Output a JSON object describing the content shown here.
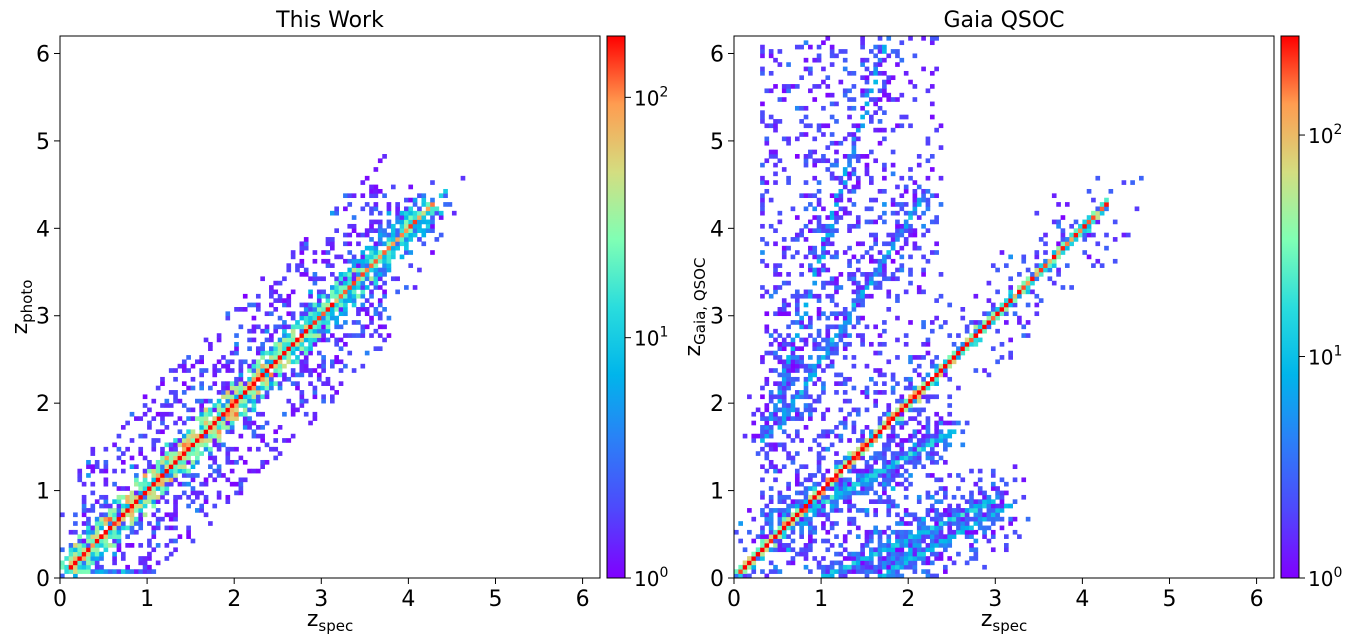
{
  "chart_data": [
    {
      "type": "heatmap",
      "title": "This Work",
      "xlabel": "z",
      "xlabel_sub": "spec",
      "ylabel": "z",
      "ylabel_sub": "photo",
      "xlim": [
        0,
        6.2
      ],
      "ylim": [
        0,
        6.2
      ],
      "xticks": [
        "0",
        "1",
        "2",
        "3",
        "4",
        "5",
        "6"
      ],
      "yticks": [
        "0",
        "1",
        "2",
        "3",
        "4",
        "5",
        "6"
      ],
      "colorbar": {
        "scale": "log",
        "range": [
          1,
          180
        ],
        "colormap": "rainbow",
        "ticks": [
          {
            "base": "10",
            "exp": "0",
            "value": 1
          },
          {
            "base": "10",
            "exp": "1",
            "value": 10
          },
          {
            "base": "10",
            "exp": "2",
            "value": 100
          }
        ]
      },
      "structures": [
        {
          "kind": "main-ridge",
          "z_spec_range": [
            0.1,
            4.3
          ],
          "slope": 1.0,
          "intercept": 0.0,
          "peak_counts": 180,
          "spread": 0.07
        },
        {
          "kind": "low-z-clump",
          "center": [
            0.2,
            0.2
          ],
          "peak_counts": 20
        }
      ]
    },
    {
      "type": "heatmap",
      "title": "Gaia QSOC",
      "xlabel": "z",
      "xlabel_sub": "spec",
      "ylabel": "z",
      "ylabel_sub": "Gaia, QSOC",
      "xlim": [
        0,
        6.2
      ],
      "ylim": [
        0,
        6.2
      ],
      "xticks": [
        "0",
        "1",
        "2",
        "3",
        "4",
        "5",
        "6"
      ],
      "yticks": [
        "0",
        "1",
        "2",
        "3",
        "4",
        "5",
        "6"
      ],
      "colorbar": {
        "scale": "log",
        "range": [
          1,
          280
        ],
        "colormap": "rainbow",
        "ticks": [
          {
            "base": "10",
            "exp": "0",
            "value": 1
          },
          {
            "base": "10",
            "exp": "1",
            "value": 10
          },
          {
            "base": "10",
            "exp": "2",
            "value": 100
          }
        ]
      },
      "structures": [
        {
          "kind": "main-ridge",
          "z_spec_range": [
            0.05,
            4.3
          ],
          "slope": 1.0,
          "intercept": 0.0,
          "peak_counts": 280,
          "spread": 0.02
        },
        {
          "kind": "alias-line",
          "z_spec_range": [
            0.35,
            2.1
          ],
          "slope": 3.3,
          "intercept": 0.4,
          "peak_counts": 8
        },
        {
          "kind": "alias-line",
          "z_spec_range": [
            0.5,
            2.2
          ],
          "slope": 1.6,
          "intercept": 0.9,
          "peak_counts": 6
        },
        {
          "kind": "alias-line",
          "z_spec_range": [
            0.5,
            2.5
          ],
          "slope": 0.55,
          "intercept": 0.3,
          "peak_counts": 8
        },
        {
          "kind": "alias-line",
          "z_spec_range": [
            1.0,
            3.0
          ],
          "slope": 0.45,
          "intercept": -0.45,
          "peak_counts": 6
        },
        {
          "kind": "alias-line",
          "z_spec_range": [
            1.6,
            3.2
          ],
          "slope": 0.55,
          "intercept": -0.9,
          "peak_counts": 5
        },
        {
          "kind": "diffuse-cloud",
          "z_spec_range": [
            0.3,
            2.4
          ],
          "z_range": [
            0,
            6.2
          ],
          "density": 0.5
        }
      ]
    }
  ]
}
